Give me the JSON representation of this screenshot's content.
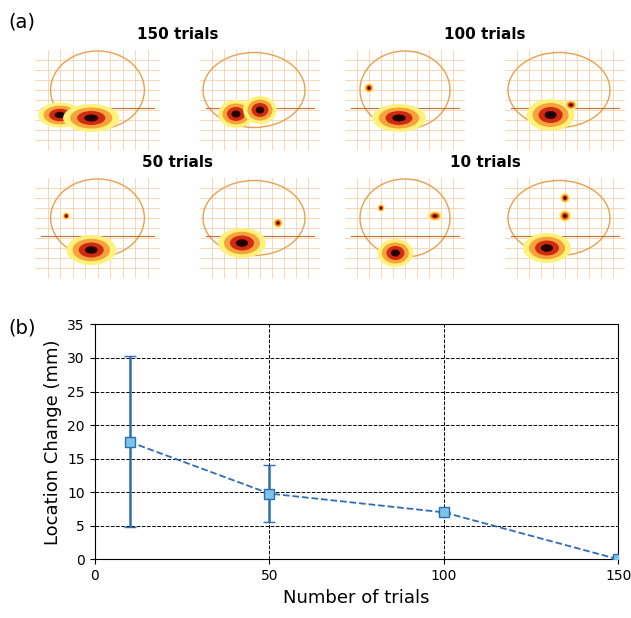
{
  "panel_labels": [
    "(a)",
    "(b)"
  ],
  "maps": [
    {
      "title": "150 trials"
    },
    {
      "title": "100 trials"
    },
    {
      "title": "50 trials"
    },
    {
      "title": "10 trials"
    }
  ],
  "chart_data": {
    "type": "line",
    "x": [
      10,
      50,
      100,
      150
    ],
    "values": [
      17.5,
      9.8,
      7.0,
      0.0
    ],
    "errors": [
      12.75,
      4.25,
      0.0,
      0.0
    ],
    "xlabel": "Number of trials",
    "ylabel": "Location Change (mm)",
    "xlim": [
      0,
      150
    ],
    "xticks": [
      0,
      50,
      100,
      150
    ],
    "ylim": [
      0,
      35
    ],
    "yticks": [
      0,
      5,
      10,
      15,
      20,
      25,
      30,
      35
    ],
    "grid": true,
    "color": "#2e6db4",
    "marker": "s",
    "line_style": "dashed"
  }
}
